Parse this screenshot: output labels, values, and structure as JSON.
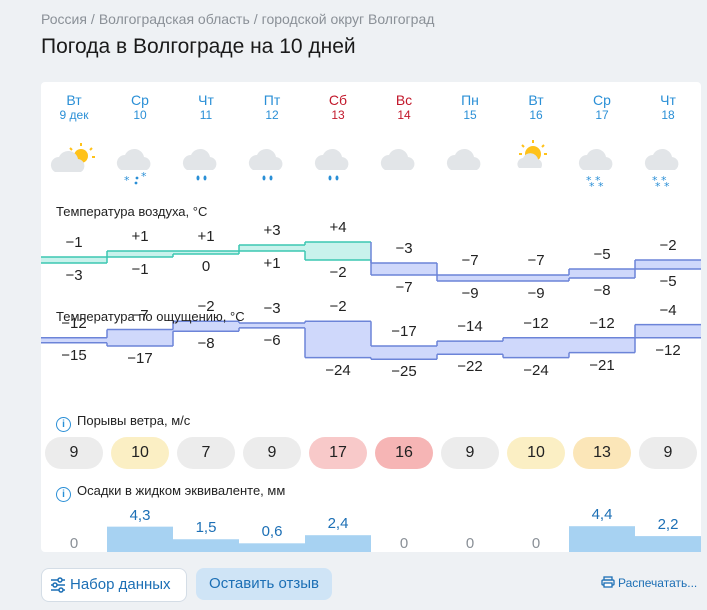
{
  "breadcrumbs": [
    "Россия",
    "Волгоградская область",
    "городской округ Волгоград"
  ],
  "page_title": "Погода в Волгограде на 10 дней",
  "days": [
    {
      "name": "Вт",
      "date": "9 дек",
      "weekend": false,
      "icon": "partly-cloudy-icon"
    },
    {
      "name": "Ср",
      "date": "10",
      "weekend": false,
      "icon": "cloud-snow-icon"
    },
    {
      "name": "Чт",
      "date": "11",
      "weekend": false,
      "icon": "cloud-rain-icon"
    },
    {
      "name": "Пт",
      "date": "12",
      "weekend": false,
      "icon": "cloud-rain-icon"
    },
    {
      "name": "Сб",
      "date": "13",
      "weekend": true,
      "icon": "cloud-rain-icon"
    },
    {
      "name": "Вс",
      "date": "14",
      "weekend": true,
      "icon": "cloud-icon"
    },
    {
      "name": "Пн",
      "date": "15",
      "weekend": false,
      "icon": "cloud-icon"
    },
    {
      "name": "Вт",
      "date": "16",
      "weekend": false,
      "icon": "sun-behind-cloud-icon"
    },
    {
      "name": "Ср",
      "date": "17",
      "weekend": false,
      "icon": "cloud-snowflakes-icon"
    },
    {
      "name": "Чт",
      "date": "18",
      "weekend": false,
      "icon": "cloud-snowflakes-icon"
    }
  ],
  "air_temp": {
    "label": "Температура воздуха, °C",
    "max": [
      "−1",
      "+1",
      "+1",
      "+3",
      "+4",
      "−3",
      "−7",
      "−7",
      "−5",
      "−2"
    ],
    "min": [
      "−3",
      "−1",
      "0",
      "+1",
      "−2",
      "−7",
      "−9",
      "−9",
      "−8",
      "−5"
    ],
    "max_num": [
      -1,
      1,
      1,
      3,
      4,
      -3,
      -7,
      -7,
      -5,
      -2
    ],
    "min_num": [
      -3,
      -1,
      0,
      1,
      -2,
      -7,
      -9,
      -9,
      -8,
      -5
    ]
  },
  "feels_temp": {
    "label": "Температура по ощущению, °C",
    "max": [
      "−12",
      "−7",
      "−2",
      "−3",
      "−2",
      "−17",
      "−14",
      "−12",
      "−12",
      "−4"
    ],
    "min": [
      "−15",
      "−17",
      "−8",
      "−6",
      "−24",
      "−25",
      "−22",
      "−24",
      "−21",
      "−12"
    ],
    "max_num": [
      -12,
      -7,
      -2,
      -3,
      -2,
      -17,
      -14,
      -12,
      -12,
      -4
    ],
    "min_num": [
      -15,
      -17,
      -8,
      -6,
      -24,
      -25,
      -22,
      -24,
      -21,
      -12
    ]
  },
  "wind": {
    "label": "Порывы ветра, м/с",
    "values": [
      "9",
      "10",
      "7",
      "9",
      "17",
      "16",
      "9",
      "10",
      "13",
      "9"
    ],
    "colors": [
      "#ececec",
      "#fbefc4",
      "#ececec",
      "#ececec",
      "#f8c9c9",
      "#f6b5b5",
      "#ececec",
      "#fbefc4",
      "#fbe6b8",
      "#ececec"
    ]
  },
  "precip": {
    "label": "Осадки в жидком эквиваленте, мм",
    "values": [
      "0",
      "4,3",
      "1,5",
      "0,6",
      "2,4",
      "0",
      "0",
      "0",
      "4,4",
      "2,2"
    ],
    "amounts": [
      0,
      4.3,
      1.5,
      0.6,
      2.4,
      0,
      0,
      0,
      4.4,
      2.2
    ]
  },
  "buttons": {
    "data": "Набор данных",
    "feedback": "Оставить отзыв",
    "print": "Распечатать..."
  },
  "colors": {
    "accent": "#2a8fd6",
    "weekend": "#c2182b",
    "warm_fill": "#c9f2ec",
    "warm_line": "#3cc7b2",
    "cold_fill": "#cfd8fb",
    "cold_line": "#6c84d8",
    "precip": "#a7d2f2"
  }
}
